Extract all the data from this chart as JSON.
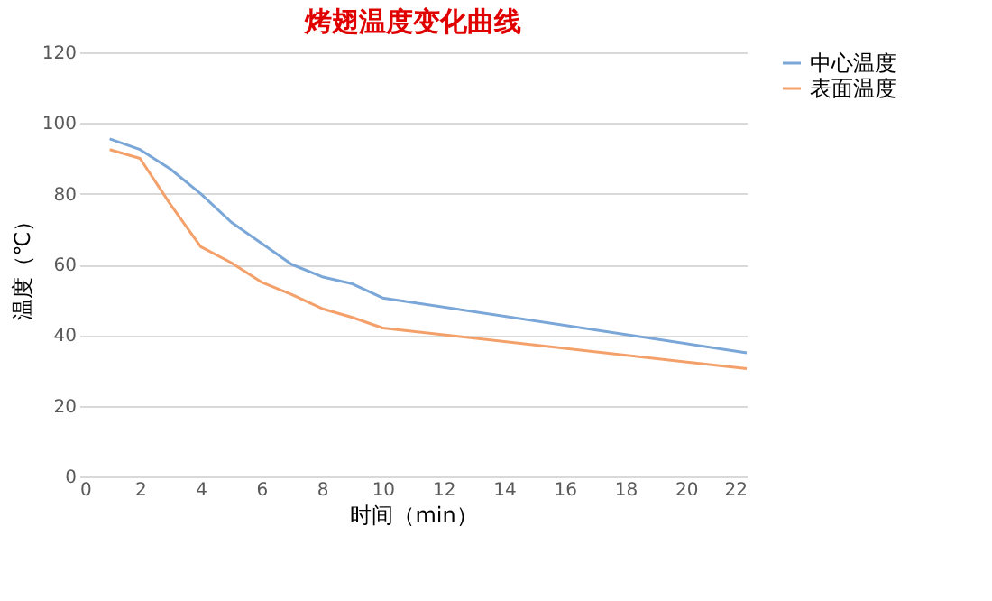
{
  "chart_data": {
    "type": "line",
    "title": "烤翅温度变化曲线",
    "xlabel": "时间（min）",
    "ylabel": "温度（℃）",
    "x": [
      1,
      2,
      3,
      4,
      5,
      6,
      7,
      8,
      9,
      10,
      22
    ],
    "series": [
      {
        "name": "中心温度",
        "color": "#7aa7d8",
        "values": [
          95.5,
          92.5,
          87,
          80,
          72,
          66,
          60,
          56.5,
          54.5,
          50.5,
          35
        ]
      },
      {
        "name": "表面温度",
        "color": "#f4a06a",
        "values": [
          92.5,
          90,
          77,
          65,
          60.5,
          55,
          51.5,
          47.5,
          45,
          42,
          30.5
        ]
      }
    ],
    "xlim": [
      0,
      22
    ],
    "xticks": [
      0,
      2,
      4,
      6,
      8,
      10,
      12,
      14,
      16,
      18,
      20,
      22
    ],
    "ylim": [
      0,
      120
    ],
    "yticks": [
      0,
      20,
      40,
      60,
      80,
      100,
      120
    ],
    "grid": "y",
    "legend": "right",
    "marker": "none",
    "line_style": "solid"
  }
}
